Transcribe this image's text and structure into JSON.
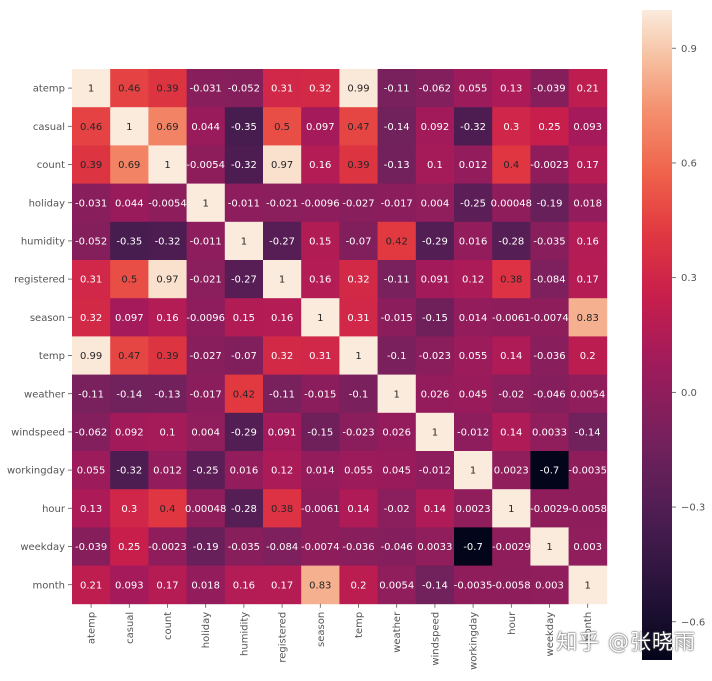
{
  "chart_data": {
    "type": "heatmap",
    "title": "",
    "variables": [
      "atemp",
      "casual",
      "count",
      "holiday",
      "humidity",
      "registered",
      "season",
      "temp",
      "weather",
      "windspeed",
      "workingday",
      "hour",
      "weekday",
      "month"
    ],
    "matrix": [
      [
        1,
        0.46,
        0.39,
        -0.031,
        -0.052,
        0.31,
        0.32,
        0.99,
        -0.11,
        -0.062,
        0.055,
        0.13,
        -0.039,
        0.21
      ],
      [
        0.46,
        1,
        0.69,
        0.044,
        -0.35,
        0.5,
        0.097,
        0.47,
        -0.14,
        0.092,
        -0.32,
        0.3,
        0.25,
        0.093
      ],
      [
        0.39,
        0.69,
        1,
        -0.0054,
        -0.32,
        0.97,
        0.16,
        0.39,
        -0.13,
        0.1,
        0.012,
        0.4,
        -0.0023,
        0.17
      ],
      [
        -0.031,
        0.044,
        -0.0054,
        1,
        -0.011,
        -0.021,
        -0.0096,
        -0.027,
        -0.017,
        0.004,
        -0.25,
        0.00048,
        -0.19,
        0.018
      ],
      [
        -0.052,
        -0.35,
        -0.32,
        -0.011,
        1,
        -0.27,
        0.15,
        -0.07,
        0.42,
        -0.29,
        0.016,
        -0.28,
        -0.035,
        0.16
      ],
      [
        0.31,
        0.5,
        0.97,
        -0.021,
        -0.27,
        1,
        0.16,
        0.32,
        -0.11,
        0.091,
        0.12,
        0.38,
        -0.084,
        0.17
      ],
      [
        0.32,
        0.097,
        0.16,
        -0.0096,
        0.15,
        0.16,
        1,
        0.31,
        -0.015,
        -0.15,
        0.014,
        -0.0061,
        -0.0074,
        0.83
      ],
      [
        0.99,
        0.47,
        0.39,
        -0.027,
        -0.07,
        0.32,
        0.31,
        1,
        -0.1,
        -0.023,
        0.055,
        0.14,
        -0.036,
        0.2
      ],
      [
        -0.11,
        -0.14,
        -0.13,
        -0.017,
        0.42,
        -0.11,
        -0.015,
        -0.1,
        1,
        0.026,
        0.045,
        -0.02,
        -0.046,
        0.0054
      ],
      [
        -0.062,
        0.092,
        0.1,
        0.004,
        -0.29,
        0.091,
        -0.15,
        -0.023,
        0.026,
        1,
        -0.012,
        0.14,
        0.0033,
        -0.14
      ],
      [
        0.055,
        -0.32,
        0.012,
        -0.25,
        0.016,
        0.12,
        0.014,
        0.055,
        0.045,
        -0.012,
        1,
        0.0023,
        -0.7,
        -0.0035
      ],
      [
        0.13,
        0.3,
        0.4,
        0.00048,
        -0.28,
        0.38,
        -0.0061,
        0.14,
        -0.02,
        0.14,
        0.0023,
        1,
        -0.0029,
        -0.0058
      ],
      [
        -0.039,
        0.25,
        -0.0023,
        -0.19,
        -0.035,
        -0.084,
        -0.0074,
        -0.036,
        -0.046,
        0.0033,
        -0.7,
        -0.0029,
        1,
        0.003
      ],
      [
        0.21,
        0.093,
        0.17,
        0.018,
        0.16,
        0.17,
        0.83,
        0.2,
        0.0054,
        -0.14,
        -0.0035,
        -0.0058,
        0.003,
        1
      ]
    ],
    "colorbar": {
      "vmin": -0.7,
      "vmax": 1.0,
      "ticks": [
        0.9,
        0.6,
        0.3,
        0.0,
        -0.3,
        -0.6
      ],
      "tick_labels": [
        "0.9",
        "0.6",
        "0.3",
        "0.0",
        "−0.3",
        "−0.6"
      ],
      "colormap": "rocket"
    },
    "annotations": true
  },
  "watermark": "知乎 @张晓雨"
}
